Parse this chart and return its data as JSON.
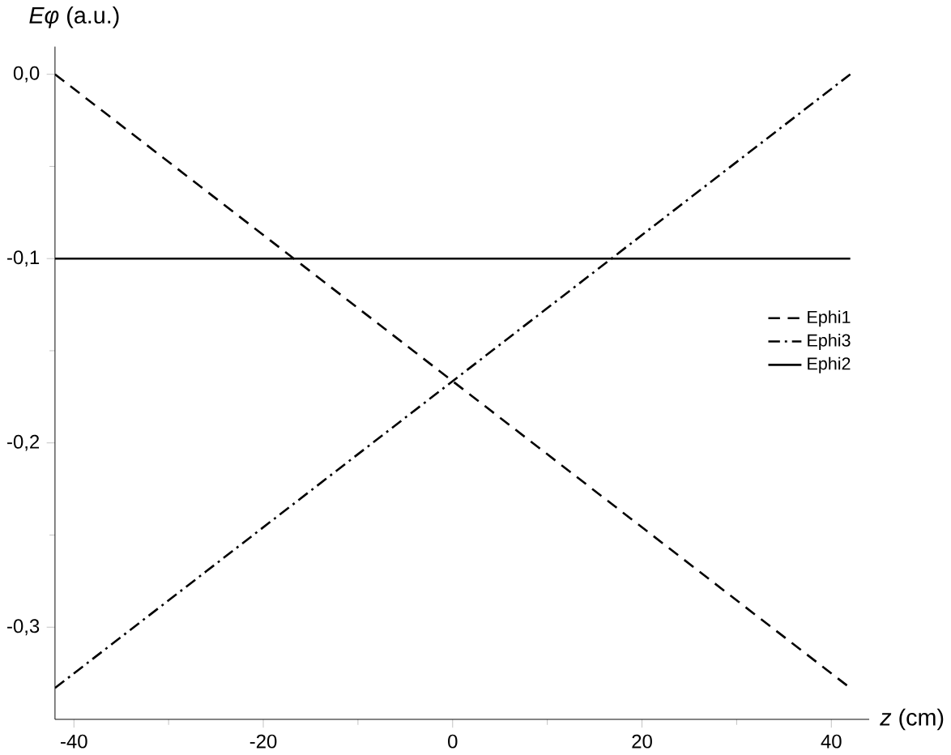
{
  "chart_data": {
    "type": "line",
    "xlabel": "*z* (cm)",
    "ylabel": "*Eφ* (a.u.)",
    "x": [
      -42,
      42
    ],
    "series": [
      {
        "name": "Ephi1",
        "color": "#000000",
        "line_style": "dashed",
        "values": [
          0.0,
          -0.333
        ]
      },
      {
        "name": "Ephi3",
        "color": "#000000",
        "line_style": "dashdot",
        "values": [
          -0.333,
          0.0
        ]
      },
      {
        "name": "Ephi2",
        "color": "#000000",
        "line_style": "solid",
        "values": [
          -0.1,
          -0.1
        ]
      }
    ],
    "xlim": [
      -42,
      44
    ],
    "ylim": [
      -0.35,
      0.015
    ],
    "xticks": [
      -40,
      -20,
      0,
      20,
      40
    ],
    "yticks": [
      {
        "value": 0,
        "label": "0,0"
      },
      {
        "value": -0.1,
        "label": "-0,1"
      },
      {
        "value": -0.2,
        "label": "-0,2"
      },
      {
        "value": -0.3,
        "label": "-0,3"
      }
    ],
    "grid": false,
    "legend": "right",
    "marker": "none"
  }
}
